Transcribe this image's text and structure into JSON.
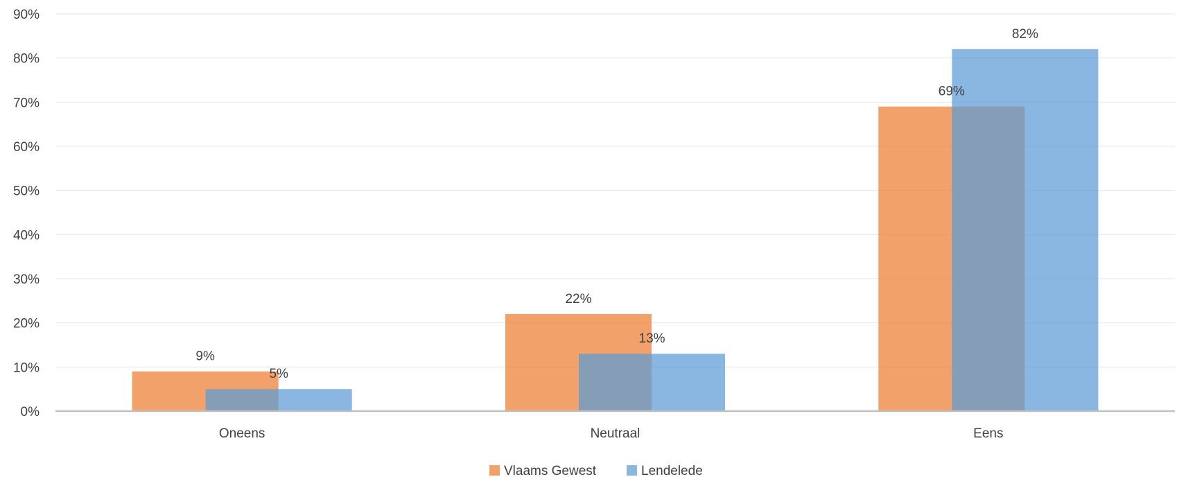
{
  "chart_data": {
    "type": "bar",
    "title": "",
    "xlabel": "",
    "ylabel": "",
    "categories": [
      "Oneens",
      "Neutraal",
      "Eens"
    ],
    "series": [
      {
        "name": "Vlaams Gewest",
        "values": [
          9,
          22,
          69
        ],
        "color": "#ED7D31"
      },
      {
        "name": "Lendelede",
        "values": [
          5,
          13,
          82
        ],
        "color": "#5B9BD5"
      }
    ],
    "ylim": [
      0,
      90
    ],
    "yticks": [
      0,
      10,
      20,
      30,
      40,
      50,
      60,
      70,
      80,
      90
    ],
    "tick_labels": [
      "0%",
      "10%",
      "20%",
      "30%",
      "40%",
      "50%",
      "60%",
      "70%",
      "80%",
      "90%"
    ],
    "data_labels": [
      [
        "9%",
        "22%",
        "69%"
      ],
      [
        "5%",
        "13%",
        "82%"
      ]
    ],
    "grid": true,
    "legend_position": "bottom",
    "overlapping_bars": true
  }
}
